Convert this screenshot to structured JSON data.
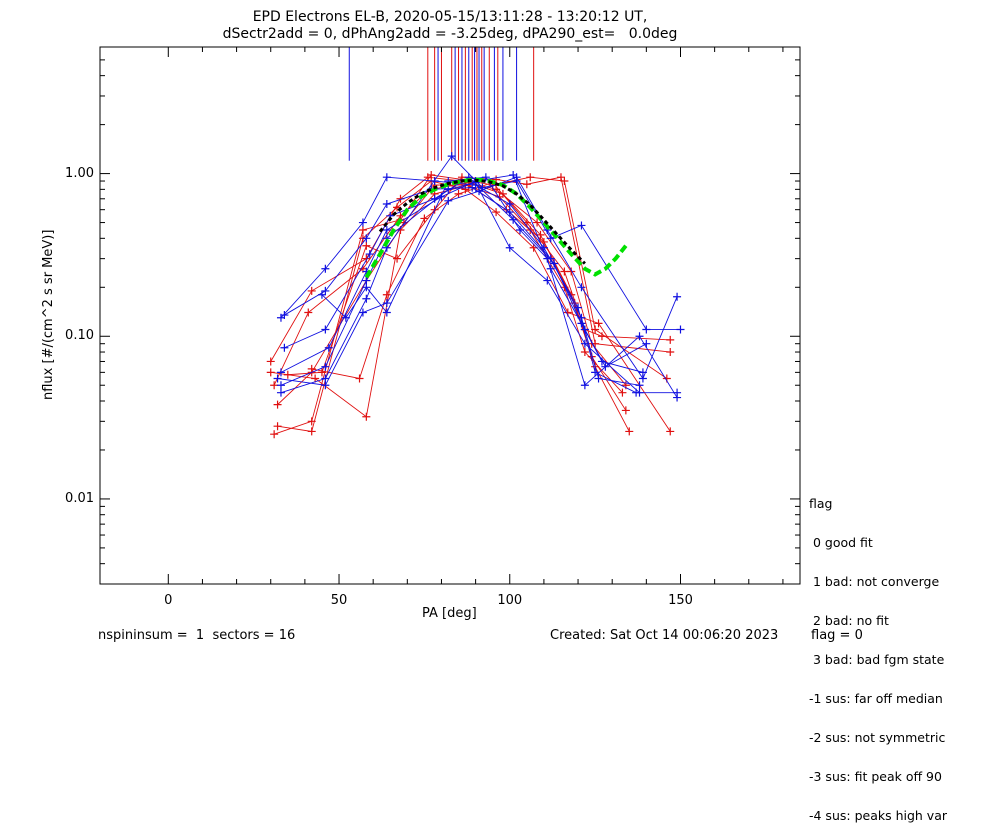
{
  "chart_data": {
    "type": "scatter",
    "title": "EPD Electrons EL-B, 2020-05-15/13:11:28 - 13:20:12 UT,",
    "subtitle": "dSectr2add = 0, dPhAng2add = -3.25deg, dPA290_est=   0.0deg",
    "xlabel": "PA [deg]",
    "ylabel": "nflux [#/(cm^2 s sr MeV)]",
    "xlim": [
      -20,
      185
    ],
    "ylim": [
      0.003,
      6
    ],
    "y_scale": "log",
    "grid": false,
    "x_ticks": [
      0,
      50,
      100,
      150
    ],
    "x_tick_labels": [
      "0",
      "50",
      "100",
      "150"
    ],
    "y_ticks": [
      0.01,
      0.1,
      1.0
    ],
    "y_tick_labels": [
      "0.01",
      "0.10",
      "1.00"
    ],
    "colors": {
      "red": "#e01010",
      "blue": "#1010e0",
      "green": "#00e000",
      "black": "#000000"
    },
    "series": [
      {
        "color": "red",
        "x": [
          30,
          42,
          58,
          68,
          76,
          86,
          96,
          108,
          118,
          124,
          134
        ],
        "y": [
          0.07,
          0.19,
          0.3,
          0.7,
          0.95,
          0.9,
          0.8,
          0.5,
          0.25,
          0.09,
          0.05
        ]
      },
      {
        "color": "red",
        "x": [
          31,
          41,
          57,
          68,
          78,
          87,
          97,
          106,
          116,
          122,
          133
        ],
        "y": [
          0.05,
          0.14,
          0.26,
          0.55,
          0.85,
          0.85,
          0.72,
          0.45,
          0.2,
          0.08,
          0.045
        ]
      },
      {
        "color": "red",
        "x": [
          32,
          42,
          58,
          69,
          77,
          88,
          98,
          109,
          118,
          124,
          134
        ],
        "y": [
          0.038,
          0.06,
          0.22,
          0.5,
          0.8,
          0.88,
          0.75,
          0.42,
          0.18,
          0.075,
          0.035
        ]
      },
      {
        "color": "red",
        "x": [
          30,
          43,
          58,
          68,
          78,
          88,
          99,
          110,
          119,
          125,
          135
        ],
        "y": [
          0.06,
          0.055,
          0.032,
          0.45,
          0.75,
          0.85,
          0.6,
          0.38,
          0.16,
          0.065,
          0.026
        ]
      },
      {
        "color": "red",
        "x": [
          32,
          42,
          57,
          67,
          77,
          87,
          96,
          107,
          117,
          126,
          147
        ],
        "y": [
          0.028,
          0.026,
          0.4,
          0.62,
          0.9,
          0.8,
          0.58,
          0.35,
          0.14,
          0.12,
          0.026
        ]
      },
      {
        "color": "red",
        "x": [
          31,
          42,
          57,
          68,
          77,
          86,
          95,
          106,
          116,
          125,
          146
        ],
        "y": [
          0.025,
          0.03,
          0.45,
          0.52,
          0.98,
          0.92,
          0.85,
          0.95,
          0.9,
          0.11,
          0.055
        ]
      },
      {
        "color": "red",
        "x": [
          35,
          45,
          58,
          67,
          78,
          86,
          96,
          105,
          115,
          125,
          147
        ],
        "y": [
          0.058,
          0.06,
          0.36,
          0.3,
          0.6,
          0.95,
          0.92,
          0.86,
          0.95,
          0.09,
          0.08
        ]
      },
      {
        "color": "red",
        "x": [
          42,
          56,
          64,
          75,
          85,
          95,
          105,
          116,
          122,
          127,
          147
        ],
        "y": [
          0.063,
          0.055,
          0.18,
          0.53,
          0.75,
          0.88,
          0.5,
          0.25,
          0.11,
          0.1,
          0.095
        ]
      },
      {
        "color": "blue",
        "x": [
          33,
          46,
          57,
          64,
          78,
          90,
          100,
          110,
          120,
          125,
          137
        ],
        "y": [
          0.13,
          0.26,
          0.5,
          0.95,
          0.9,
          0.85,
          0.65,
          0.35,
          0.15,
          0.06,
          0.045
        ]
      },
      {
        "color": "blue",
        "x": [
          34,
          46,
          58,
          64,
          77,
          89,
          100,
          112,
          121,
          126,
          138
        ],
        "y": [
          0.135,
          0.19,
          0.4,
          0.65,
          0.8,
          0.82,
          0.58,
          0.3,
          0.13,
          0.055,
          0.05
        ]
      },
      {
        "color": "blue",
        "x": [
          34,
          46,
          59,
          65,
          78,
          88,
          101,
          113,
          121,
          127,
          139
        ],
        "y": [
          0.085,
          0.11,
          0.32,
          0.55,
          0.7,
          0.95,
          0.52,
          0.28,
          0.12,
          0.07,
          0.06
        ]
      },
      {
        "color": "blue",
        "x": [
          33,
          47,
          58,
          64,
          80,
          90,
          101,
          112,
          122,
          128,
          140
        ],
        "y": [
          0.06,
          0.085,
          0.25,
          0.45,
          0.72,
          0.9,
          0.98,
          0.26,
          0.11,
          0.065,
          0.09
        ]
      },
      {
        "color": "blue",
        "x": [
          33,
          46,
          58,
          64,
          82,
          90,
          100,
          111,
          122,
          138,
          149
        ],
        "y": [
          0.05,
          0.065,
          0.22,
          0.4,
          0.8,
          0.88,
          0.35,
          0.22,
          0.09,
          0.045,
          0.045
        ]
      },
      {
        "color": "blue",
        "x": [
          33,
          46,
          58,
          64,
          83,
          92,
          102,
          112,
          121,
          140,
          150
        ],
        "y": [
          0.045,
          0.055,
          0.17,
          0.35,
          1.28,
          0.82,
          0.9,
          0.4,
          0.48,
          0.11,
          0.11
        ]
      },
      {
        "color": "blue",
        "x": [
          32,
          46,
          57,
          64,
          82,
          91,
          102,
          111,
          121,
          139,
          149
        ],
        "y": [
          0.055,
          0.05,
          0.14,
          0.16,
          0.68,
          0.78,
          0.95,
          0.45,
          0.2,
          0.055,
          0.175
        ]
      },
      {
        "color": "blue",
        "x": [
          45,
          52,
          58,
          64,
          82,
          93,
          103,
          111,
          122,
          138,
          149
        ],
        "y": [
          0.18,
          0.13,
          0.2,
          0.14,
          0.9,
          0.95,
          0.45,
          0.3,
          0.05,
          0.1,
          0.042
        ]
      }
    ],
    "fit_green": {
      "x": [
        58,
        62,
        66,
        70,
        74,
        78,
        82,
        86,
        90,
        94,
        98,
        102,
        106,
        110,
        114,
        118,
        122,
        125,
        128,
        131,
        134
      ],
      "y": [
        0.23,
        0.32,
        0.45,
        0.6,
        0.72,
        0.8,
        0.86,
        0.9,
        0.92,
        0.9,
        0.85,
        0.75,
        0.62,
        0.5,
        0.4,
        0.32,
        0.26,
        0.24,
        0.26,
        0.3,
        0.36
      ]
    },
    "fit_black": {
      "x": [
        62,
        66,
        70,
        74,
        78,
        82,
        86,
        90,
        94,
        98,
        102,
        106,
        110,
        114,
        118,
        122
      ],
      "y": [
        0.44,
        0.56,
        0.66,
        0.75,
        0.82,
        0.87,
        0.9,
        0.91,
        0.89,
        0.84,
        0.75,
        0.64,
        0.52,
        0.42,
        0.34,
        0.28
      ]
    },
    "top_lines": [
      {
        "color": "blue",
        "x": 53
      },
      {
        "color": "red",
        "x": 76
      },
      {
        "color": "red",
        "x": 78
      },
      {
        "color": "blue",
        "x": 79
      },
      {
        "color": "red",
        "x": 80
      },
      {
        "color": "red",
        "x": 83
      },
      {
        "color": "blue",
        "x": 84
      },
      {
        "color": "red",
        "x": 85
      },
      {
        "color": "blue",
        "x": 86
      },
      {
        "color": "red",
        "x": 87
      },
      {
        "color": "blue",
        "x": 88
      },
      {
        "color": "red",
        "x": 89
      },
      {
        "color": "blue",
        "x": 89.7
      },
      {
        "color": "red",
        "x": 90.4
      },
      {
        "color": "blue",
        "x": 91
      },
      {
        "color": "red",
        "x": 91.8
      },
      {
        "color": "blue",
        "x": 92.5
      },
      {
        "color": "red",
        "x": 94
      },
      {
        "color": "blue",
        "x": 95.5
      },
      {
        "color": "red",
        "x": 96.5
      },
      {
        "color": "blue",
        "x": 98
      },
      {
        "color": "blue",
        "x": 102
      },
      {
        "color": "red",
        "x": 107
      }
    ],
    "top_lines_bottom_y": 1.2
  },
  "legend": {
    "title": "flag",
    "items": [
      " 0 good fit",
      " 1 bad: not converge",
      " 2 bad: no fit",
      " 3 bad: bad fgm state",
      "-1 sus: far off median",
      "-2 sus: not symmetric",
      "-3 sus: fit peak off 90",
      "-4 sus: peaks high var"
    ]
  },
  "footer": {
    "left": "nspininsum =  1  sectors = 16",
    "created": "Created: Sat Oct 14 00:06:20 2023",
    "flag": "flag = 0"
  }
}
